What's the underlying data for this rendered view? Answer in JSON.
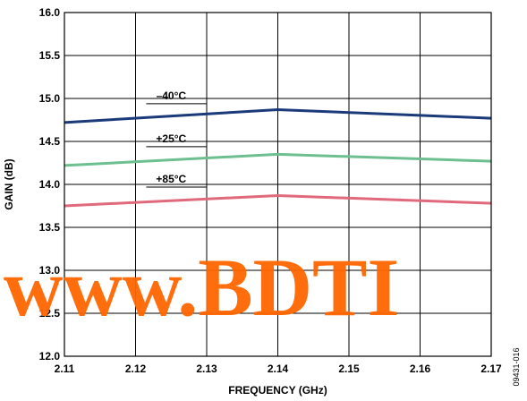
{
  "figure_id": "09431-016",
  "watermark": "www.BDTI",
  "colors": {
    "minus40": "#1b3a7a",
    "plus25": "#6dbf8f",
    "plus85": "#e06a7b",
    "watermark": "#ff6600"
  },
  "chart_data": {
    "type": "line",
    "title": "",
    "xlabel": "FREQUENCY (GHz)",
    "ylabel": "GAIN (dB)",
    "xlim": [
      2.11,
      2.17
    ],
    "ylim": [
      12.0,
      16.0
    ],
    "xticks": [
      2.11,
      2.12,
      2.13,
      2.14,
      2.15,
      2.16,
      2.17
    ],
    "yticks": [
      12.0,
      12.5,
      13.0,
      13.5,
      14.0,
      14.5,
      15.0,
      15.5,
      16.0
    ],
    "xtick_labels": [
      "2.11",
      "2.12",
      "2.13",
      "2.14",
      "2.15",
      "2.16",
      "2.17"
    ],
    "ytick_labels": [
      "12.0",
      "12.5",
      "13.0",
      "13.5",
      "14.0",
      "14.5",
      "15.0",
      "15.5",
      "16.0"
    ],
    "grid": true,
    "x": [
      2.11,
      2.14,
      2.17
    ],
    "series": [
      {
        "name": "–40°C",
        "values": [
          14.72,
          14.87,
          14.77
        ],
        "color": "#1b3a7a"
      },
      {
        "name": "+25°C",
        "values": [
          14.22,
          14.35,
          14.27
        ],
        "color": "#6dbf8f"
      },
      {
        "name": "+85°C",
        "values": [
          13.75,
          13.87,
          13.78
        ],
        "color": "#e06a7b"
      }
    ]
  }
}
